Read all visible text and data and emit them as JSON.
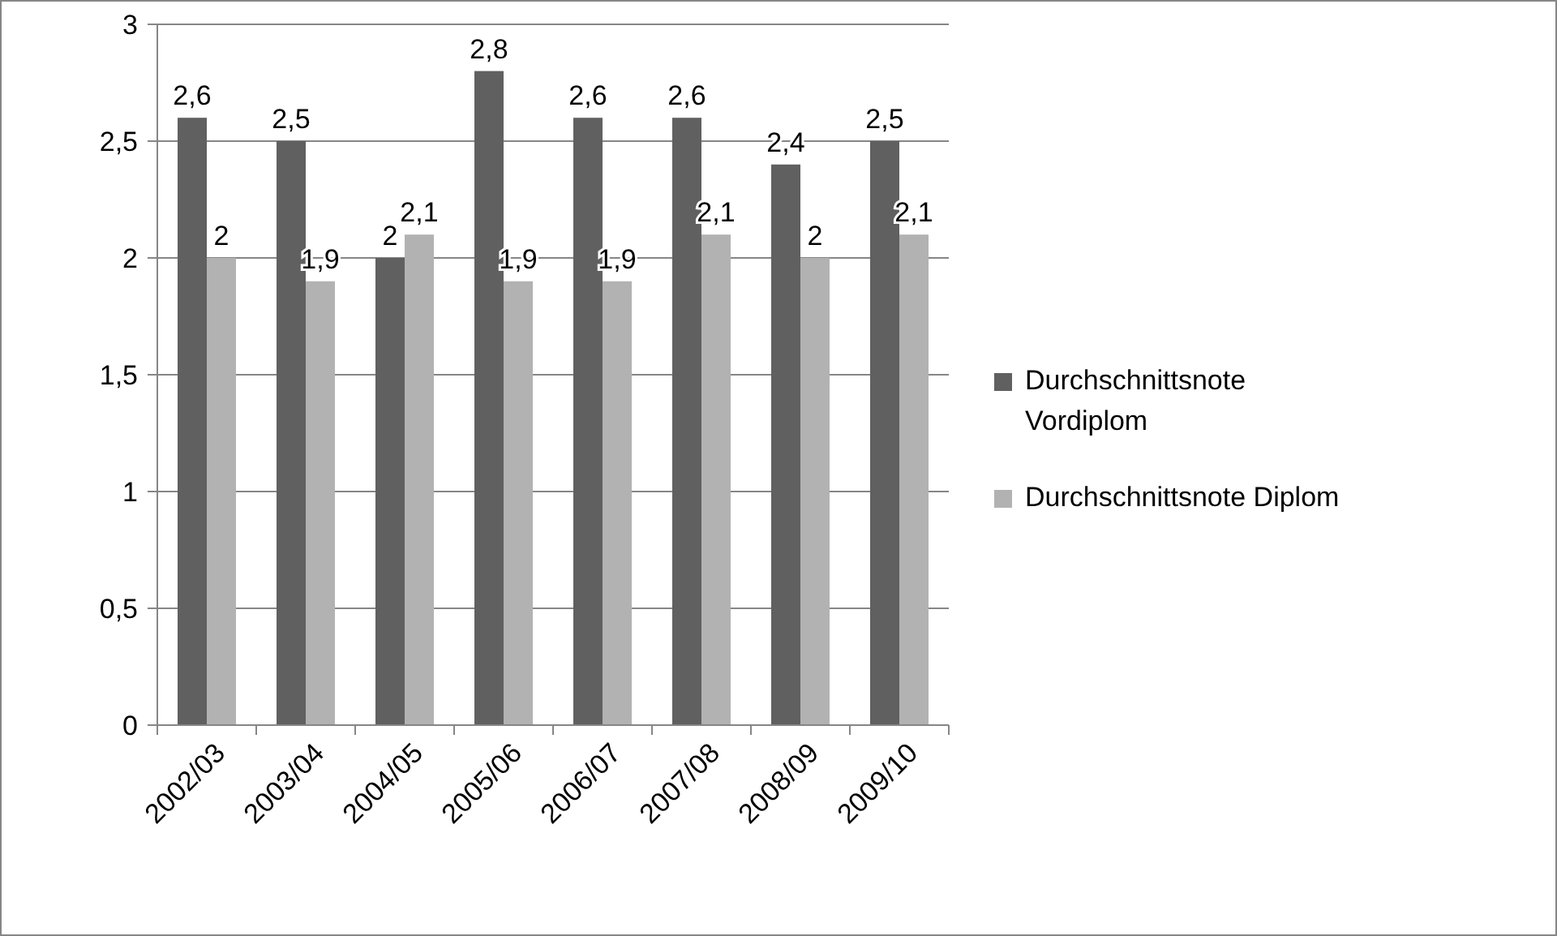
{
  "chart_data": {
    "type": "bar",
    "categories": [
      "2002/03",
      "2003/04",
      "2004/05",
      "2005/06",
      "2006/07",
      "2007/08",
      "2008/09",
      "2009/10"
    ],
    "series": [
      {
        "name": "Durchschnittsnote Vordiplom",
        "color": "#606060",
        "values": [
          2.6,
          2.5,
          2,
          2.8,
          2.6,
          2.6,
          2.4,
          2.5
        ],
        "value_labels": [
          "2,6",
          "2,5",
          "2",
          "2,8",
          "2,6",
          "2,6",
          "2,4",
          "2,5"
        ]
      },
      {
        "name": "Durchschnittsnote Diplom",
        "color": "#b2b2b2",
        "values": [
          2,
          1.9,
          2.1,
          1.9,
          1.9,
          2.1,
          2,
          2.1
        ],
        "value_labels": [
          "2",
          "1,9",
          "2,1",
          "1,9",
          "1,9",
          "2,1",
          "2",
          "2,1"
        ]
      }
    ],
    "ylim": [
      0,
      3
    ],
    "yticks": [
      0,
      {
        "value": 0.5,
        "label": "0,5"
      },
      1,
      {
        "value": 1.5,
        "label": "1,5"
      },
      2,
      {
        "value": 2.5,
        "label": "2,5"
      },
      3
    ],
    "grid": "y",
    "legend": "right"
  }
}
